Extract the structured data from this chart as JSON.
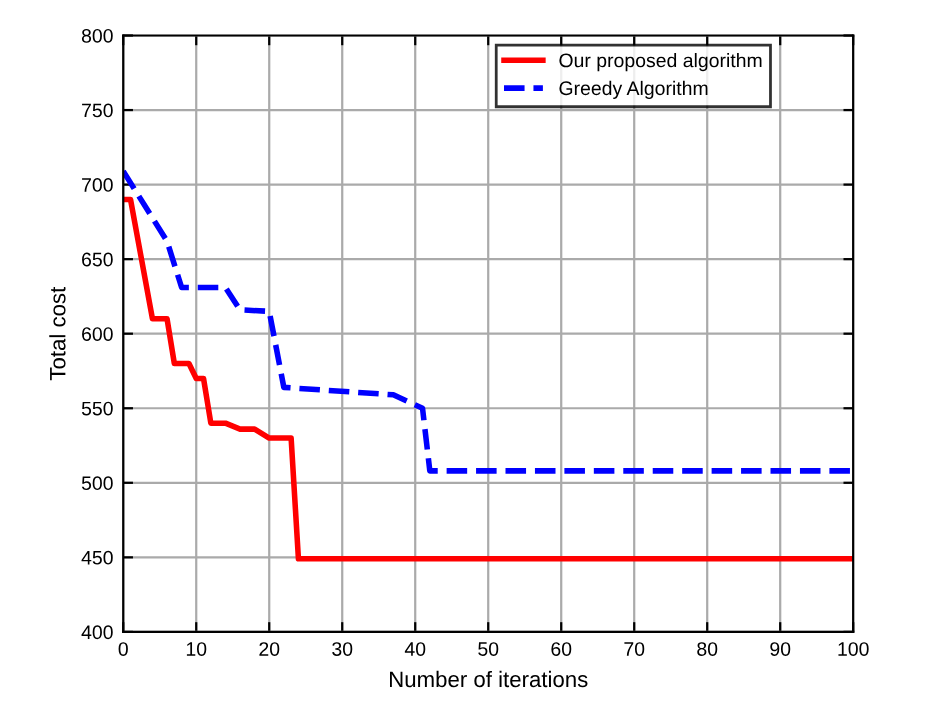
{
  "chart_data": {
    "type": "line",
    "xlabel": "Number of iterations",
    "ylabel": "Total cost",
    "xlim": [
      0,
      100
    ],
    "ylim": [
      400,
      800
    ],
    "xticks": [
      0,
      10,
      20,
      30,
      40,
      50,
      60,
      70,
      80,
      90,
      100
    ],
    "yticks": [
      400,
      450,
      500,
      550,
      600,
      650,
      700,
      750,
      800
    ],
    "grid": true,
    "legend": "top right",
    "series": [
      {
        "name": "Our proposed algorithm",
        "color": "#ff0000",
        "line_style": "solid",
        "x": [
          0,
          1,
          4,
          6,
          7,
          9,
          10,
          11,
          12,
          14,
          16,
          18,
          20,
          23,
          24,
          100
        ],
        "values": [
          690,
          690,
          610,
          610,
          580,
          580,
          570,
          570,
          540,
          540,
          536,
          536,
          530,
          530,
          449,
          449
        ]
      },
      {
        "name": "Greedy Algorithm",
        "color": "#0000ff",
        "line_style": "dashed",
        "x": [
          0,
          6,
          8,
          14,
          16,
          20,
          22,
          37,
          41,
          42,
          100
        ],
        "values": [
          709,
          662,
          631,
          631,
          616,
          615,
          564,
          559,
          550,
          508,
          508
        ]
      }
    ]
  }
}
